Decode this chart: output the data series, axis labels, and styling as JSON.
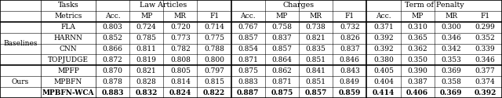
{
  "row_groups": [
    {
      "group_label": "Baselines",
      "rows": [
        {
          "label": "FLA",
          "values": [
            0.803,
            0.724,
            0.72,
            0.714,
            0.767,
            0.758,
            0.738,
            0.732,
            0.371,
            0.31,
            0.3,
            0.299
          ],
          "bold": false
        },
        {
          "label": "HARNN",
          "values": [
            0.852,
            0.785,
            0.773,
            0.775,
            0.857,
            0.837,
            0.821,
            0.826,
            0.392,
            0.365,
            0.346,
            0.352
          ],
          "bold": false
        },
        {
          "label": "CNN",
          "values": [
            0.866,
            0.811,
            0.782,
            0.788,
            0.854,
            0.857,
            0.835,
            0.837,
            0.392,
            0.362,
            0.342,
            0.339
          ],
          "bold": false
        },
        {
          "label": "TOPJUDGE",
          "values": [
            0.872,
            0.819,
            0.808,
            0.8,
            0.871,
            0.864,
            0.851,
            0.846,
            0.38,
            0.35,
            0.353,
            0.346
          ],
          "bold": false
        }
      ]
    },
    {
      "group_label": "Ours",
      "rows": [
        {
          "label": "MPFP",
          "values": [
            0.87,
            0.821,
            0.805,
            0.797,
            0.875,
            0.862,
            0.841,
            0.843,
            0.405,
            0.39,
            0.369,
            0.377
          ],
          "bold": false
        },
        {
          "label": "MPBFN",
          "values": [
            0.878,
            0.828,
            0.814,
            0.815,
            0.883,
            0.871,
            0.851,
            0.849,
            0.404,
            0.387,
            0.358,
            0.374
          ],
          "bold": false
        },
        {
          "label": "MPBFN-WCA",
          "values": [
            0.883,
            0.832,
            0.824,
            0.822,
            0.887,
            0.875,
            0.857,
            0.859,
            0.414,
            0.406,
            0.369,
            0.392
          ],
          "bold": true
        }
      ]
    }
  ],
  "metrics": [
    "Acc.",
    "MP",
    "MR",
    "F1"
  ],
  "task_spans": [
    "Law Articles",
    "Charges",
    "Term of Penalty"
  ],
  "font_size": 6.5,
  "font_size_header": 6.8
}
